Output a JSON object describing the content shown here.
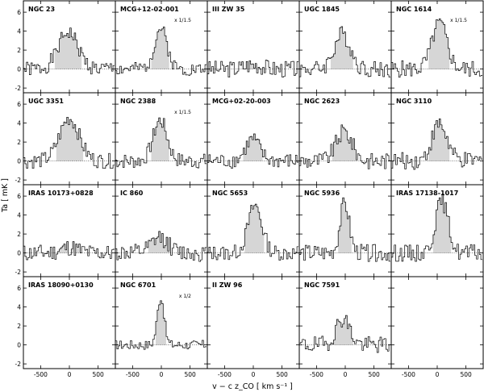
{
  "chart_data": {
    "type": "line",
    "style": "step histogram with shaded line emission",
    "xlabel": "v − c z_CO [ km s⁻¹ ]",
    "ylabel": "Ta [ mK ]",
    "xlim": [
      -800,
      800
    ],
    "ylim": [
      -2.5,
      7.2
    ],
    "xticks": [
      -500,
      0,
      500
    ],
    "yticks": [
      -2,
      0,
      2,
      4,
      6
    ],
    "panels": [
      {
        "name": "NGC 23",
        "scale": "",
        "amp": 3.9,
        "center": -20,
        "width": 170,
        "noise": 0.8,
        "seed": 1
      },
      {
        "name": "MCG+12-02-001",
        "scale": "x 1/1.5",
        "amp": 4.3,
        "center": -10,
        "width": 110,
        "noise": 0.7,
        "seed": 2
      },
      {
        "name": "III ZW 35",
        "scale": "",
        "amp": 0.5,
        "center": 0,
        "width": 150,
        "noise": 0.9,
        "seed": 3
      },
      {
        "name": "UGC 1845",
        "scale": "",
        "amp": 3.7,
        "center": -50,
        "width": 140,
        "noise": 0.9,
        "seed": 4
      },
      {
        "name": "NGC 1614",
        "scale": "x 1/1.5",
        "amp": 4.8,
        "center": 40,
        "width": 130,
        "noise": 0.9,
        "seed": 5
      },
      {
        "name": "UGC 3351",
        "scale": "",
        "amp": 4.5,
        "center": 0,
        "width": 170,
        "noise": 0.8,
        "seed": 6
      },
      {
        "name": "NGC 2388",
        "scale": "x 1/1.5",
        "amp": 4.3,
        "center": -20,
        "width": 120,
        "noise": 0.8,
        "seed": 7
      },
      {
        "name": "MCG+02-20-003",
        "scale": "",
        "amp": 2.3,
        "center": -10,
        "width": 120,
        "noise": 0.8,
        "seed": 8
      },
      {
        "name": "NGC 2623",
        "scale": "",
        "amp": 3.1,
        "center": -20,
        "width": 140,
        "noise": 0.9,
        "seed": 9
      },
      {
        "name": "NGC 3110",
        "scale": "",
        "amp": 3.9,
        "center": 40,
        "width": 130,
        "noise": 0.9,
        "seed": 10
      },
      {
        "name": "IRAS 10173+0828",
        "scale": "",
        "amp": 0.6,
        "center": 0,
        "width": 150,
        "noise": 0.9,
        "seed": 11
      },
      {
        "name": "IC 860",
        "scale": "",
        "amp": 1.6,
        "center": -20,
        "width": 140,
        "noise": 0.9,
        "seed": 12
      },
      {
        "name": "NGC 5653",
        "scale": "",
        "amp": 5.0,
        "center": 30,
        "width": 120,
        "noise": 0.8,
        "seed": 13
      },
      {
        "name": "NGC 5936",
        "scale": "",
        "amp": 5.2,
        "center": -10,
        "width": 80,
        "noise": 0.9,
        "seed": 14
      },
      {
        "name": "IRAS 17138-1017",
        "scale": "",
        "amp": 5.5,
        "center": 80,
        "width": 110,
        "noise": 0.9,
        "seed": 15
      },
      {
        "name": "IRAS 18090+0130",
        "scale": "",
        "amp": null,
        "center": 0,
        "width": 0,
        "noise": 0,
        "seed": 16
      },
      {
        "name": "NGC 6701",
        "scale": "x 1/2",
        "amp": 5.0,
        "center": -10,
        "width": 60,
        "noise": 0.5,
        "seed": 17
      },
      {
        "name": "II ZW 96",
        "scale": "",
        "amp": null,
        "center": 0,
        "width": 0,
        "noise": 0,
        "seed": 18
      },
      {
        "name": "NGC 7591",
        "scale": "",
        "amp": 2.8,
        "center": -40,
        "width": 120,
        "noise": 0.9,
        "seed": 19
      },
      {
        "name": "",
        "scale": "",
        "amp": null,
        "center": 0,
        "width": 0,
        "noise": 0,
        "seed": 20
      }
    ]
  }
}
